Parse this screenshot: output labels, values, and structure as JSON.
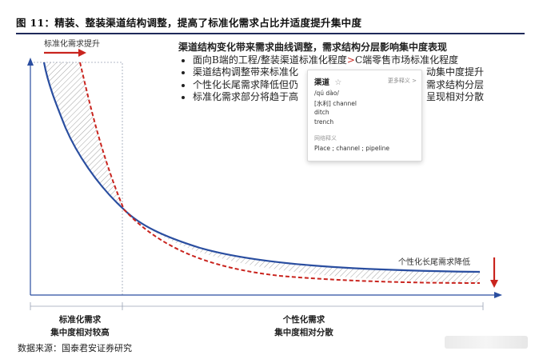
{
  "figure": {
    "title": "图 11：精装、整装渠道结构调整，提高了标准化需求占比并适度提升集中度"
  },
  "annotations": {
    "top_arrow_label": "标准化需求提升",
    "right_arrow_label": "个性化长尾需求降低",
    "bottom_left_label": [
      "标准化需求",
      "集中度相对较高"
    ],
    "bottom_right_label": [
      "个性化需求",
      "集中度相对分散"
    ]
  },
  "explanation": {
    "headline": "渠道结构变化带来需求曲线调整，需求结构分层影响集中度表现",
    "bullets": [
      {
        "pre": "面向B端的工程/整装渠道标准化程度",
        "accent": ">",
        "post": "C端零售市场标准化程度"
      },
      {
        "pre": "渠道结构调整带来标准化",
        "accent": "",
        "post": "动集中度提升"
      },
      {
        "pre": "个性化长尾需求降低但仍",
        "accent": "",
        "post": "需求结构分层"
      },
      {
        "pre": "标准化需求部分将趋于高",
        "accent": "",
        "post": "呈现相对分散"
      }
    ]
  },
  "dictionary_popup": {
    "word": "渠道",
    "star_icon": "star-outline-icon",
    "more_label": "更多释义 >",
    "pinyin": "/qú dào/",
    "definition_tagged": "[水利] channel",
    "definitions": [
      "ditch",
      "trench"
    ],
    "section_label": "网络释义",
    "web_definition": "Place ; channel ; pipeline"
  },
  "source": "数据来源：国泰君安证券研究",
  "colors": {
    "blue_curve": "#2a4ea0",
    "red_curve": "#c9241e",
    "axis": "#2a4ea0",
    "title_rule": "#1f2a5a"
  }
}
